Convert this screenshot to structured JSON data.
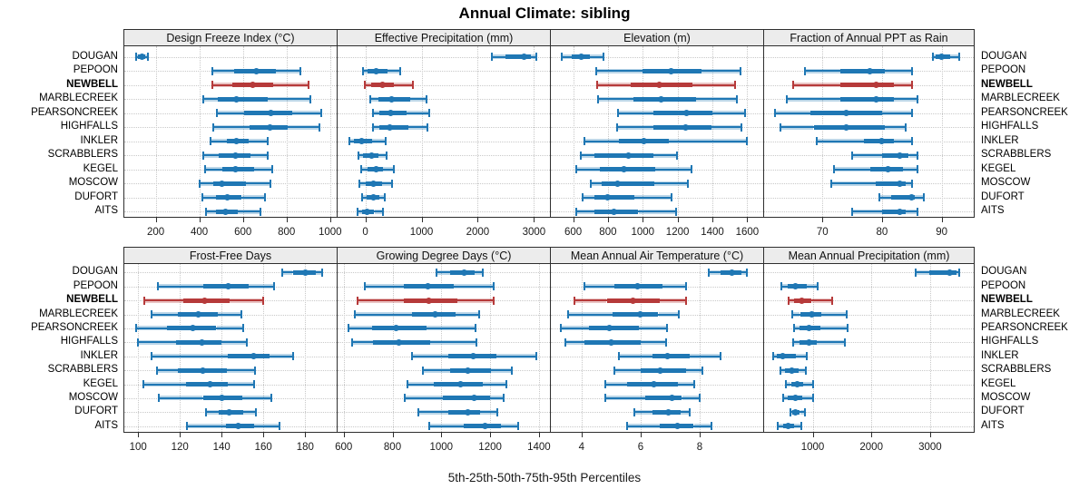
{
  "title": "Annual Climate: sibling",
  "caption": "5th-25th-50th-75th-95th Percentiles",
  "percentile_keys": [
    "5th",
    "25th",
    "50th",
    "75th",
    "95th"
  ],
  "stations": [
    "DOUGAN",
    "PEPOON",
    "NEWBELL",
    "MARBLECREEK",
    "PEARSONCREEK",
    "HIGHFALLS",
    "INKLER",
    "SCRABBLERS",
    "KEGEL",
    "MOSCOW",
    "DUFORT",
    "AITS"
  ],
  "highlight_station": "NEWBELL",
  "colors": {
    "series": "#1f77b4",
    "highlight": "#b63a3a",
    "grid": "#c9c9c9",
    "strip_bg": "#ececec",
    "border": "#2e2e2e"
  },
  "chart_data": [
    {
      "type": "dot-interval",
      "title": "Design Freeze Index (°C)",
      "grid_row": 1,
      "grid_col": 1,
      "axis": {
        "domain": [
          56,
          1030
        ],
        "ticks": [
          200,
          400,
          600,
          800,
          1000
        ]
      },
      "series": [
        {
          "name": "DOUGAN",
          "values": [
            110,
            120,
            135,
            150,
            165
          ]
        },
        {
          "name": "PEPOON",
          "values": [
            460,
            560,
            660,
            750,
            865
          ]
        },
        {
          "name": "NEWBELL",
          "values": [
            460,
            550,
            645,
            740,
            900
          ]
        },
        {
          "name": "MARBLECREEK",
          "values": [
            420,
            485,
            570,
            715,
            910
          ]
        },
        {
          "name": "PEARSONCREEK",
          "values": [
            480,
            605,
            730,
            825,
            960
          ]
        },
        {
          "name": "HIGHFALLS",
          "values": [
            465,
            630,
            725,
            805,
            950
          ]
        },
        {
          "name": "INKLER",
          "values": [
            450,
            525,
            570,
            625,
            715
          ]
        },
        {
          "name": "SCRABBLERS",
          "values": [
            420,
            490,
            565,
            635,
            715
          ]
        },
        {
          "name": "KEGEL",
          "values": [
            425,
            505,
            565,
            650,
            735
          ]
        },
        {
          "name": "MOSCOW",
          "values": [
            400,
            465,
            505,
            615,
            725
          ]
        },
        {
          "name": "DUFORT",
          "values": [
            415,
            475,
            530,
            595,
            700
          ]
        },
        {
          "name": "AITS",
          "values": [
            430,
            475,
            520,
            575,
            680
          ]
        }
      ]
    },
    {
      "type": "dot-interval",
      "title": "Effective Precipitation (mm)",
      "grid_row": 1,
      "grid_col": 2,
      "axis": {
        "domain": [
          -494,
          3285
        ],
        "ticks": [
          0,
          1000,
          2000,
          3000
        ]
      },
      "series": [
        {
          "name": "DOUGAN",
          "values": [
            2250,
            2500,
            2820,
            2950,
            3040
          ]
        },
        {
          "name": "PEPOON",
          "values": [
            -50,
            45,
            195,
            390,
            620
          ]
        },
        {
          "name": "NEWBELL",
          "values": [
            -10,
            105,
            300,
            500,
            845
          ]
        },
        {
          "name": "MARBLECREEK",
          "values": [
            85,
            230,
            470,
            805,
            1090
          ]
        },
        {
          "name": "PEARSONCREEK",
          "values": [
            140,
            255,
            445,
            740,
            1140
          ]
        },
        {
          "name": "HIGHFALLS",
          "values": [
            140,
            255,
            430,
            765,
            1105
          ]
        },
        {
          "name": "INKLER",
          "values": [
            -290,
            -200,
            -65,
            125,
            355
          ]
        },
        {
          "name": "SCRABBLERS",
          "values": [
            -130,
            -40,
            105,
            230,
            375
          ]
        },
        {
          "name": "KEGEL",
          "values": [
            -75,
            45,
            195,
            320,
            500
          ]
        },
        {
          "name": "MOSCOW",
          "values": [
            -105,
            0,
            150,
            300,
            480
          ]
        },
        {
          "name": "DUFORT",
          "values": [
            -55,
            30,
            140,
            245,
            340
          ]
        },
        {
          "name": "AITS",
          "values": [
            -145,
            -55,
            30,
            160,
            320
          ]
        }
      ]
    },
    {
      "type": "dot-interval",
      "title": "Elevation (m)",
      "grid_row": 1,
      "grid_col": 3,
      "axis": {
        "domain": [
          472,
          1692
        ],
        "ticks": [
          600,
          800,
          1000,
          1200,
          1400,
          1600
        ]
      },
      "series": [
        {
          "name": "DOUGAN",
          "values": [
            535,
            590,
            645,
            695,
            775
          ]
        },
        {
          "name": "PEPOON",
          "values": [
            735,
            1000,
            1165,
            1335,
            1560
          ]
        },
        {
          "name": "NEWBELL",
          "values": [
            740,
            930,
            1095,
            1285,
            1530
          ]
        },
        {
          "name": "MARBLECREEK",
          "values": [
            745,
            945,
            1105,
            1305,
            1540
          ]
        },
        {
          "name": "PEARSONCREEK",
          "values": [
            855,
            1060,
            1250,
            1400,
            1585
          ]
        },
        {
          "name": "HIGHFALLS",
          "values": [
            850,
            1060,
            1245,
            1395,
            1565
          ]
        },
        {
          "name": "INKLER",
          "values": [
            665,
            865,
            1005,
            1150,
            1600
          ]
        },
        {
          "name": "SCRABBLERS",
          "values": [
            645,
            720,
            915,
            1060,
            1195
          ]
        },
        {
          "name": "KEGEL",
          "values": [
            620,
            755,
            890,
            1070,
            1280
          ]
        },
        {
          "name": "MOSCOW",
          "values": [
            700,
            765,
            855,
            1065,
            1260
          ]
        },
        {
          "name": "DUFORT",
          "values": [
            655,
            720,
            795,
            950,
            1165
          ]
        },
        {
          "name": "AITS",
          "values": [
            620,
            720,
            835,
            975,
            1190
          ]
        }
      ]
    },
    {
      "type": "dot-interval",
      "title": "Fraction of Annual PPT as Rain",
      "grid_row": 1,
      "grid_col": 4,
      "axis": {
        "domain": [
          60.2,
          95.4
        ],
        "ticks": [
          70,
          80,
          90
        ]
      },
      "series": [
        {
          "name": "DOUGAN",
          "values": [
            88.5,
            89,
            90,
            91.5,
            93
          ]
        },
        {
          "name": "PEPOON",
          "values": [
            67,
            73,
            78,
            80.5,
            85
          ]
        },
        {
          "name": "NEWBELL",
          "values": [
            65,
            73,
            79,
            82,
            85
          ]
        },
        {
          "name": "MARBLECREEK",
          "values": [
            64,
            73,
            79,
            82,
            86
          ]
        },
        {
          "name": "PEARSONCREEK",
          "values": [
            62,
            68,
            74,
            80,
            85
          ]
        },
        {
          "name": "HIGHFALLS",
          "values": [
            63,
            68.5,
            74,
            80.5,
            84
          ]
        },
        {
          "name": "INKLER",
          "values": [
            69,
            77,
            80,
            82,
            85
          ]
        },
        {
          "name": "SCRABBLERS",
          "values": [
            75,
            80,
            83,
            84.5,
            86
          ]
        },
        {
          "name": "KEGEL",
          "values": [
            72,
            78,
            81,
            83.5,
            86
          ]
        },
        {
          "name": "MOSCOW",
          "values": [
            71.5,
            79,
            83,
            84,
            85
          ]
        },
        {
          "name": "DUFORT",
          "values": [
            79.5,
            81.5,
            85,
            85.5,
            87
          ]
        },
        {
          "name": "AITS",
          "values": [
            75,
            80,
            83,
            84,
            86
          ]
        }
      ]
    },
    {
      "type": "dot-interval",
      "title": "Frost-Free Days",
      "grid_row": 2,
      "grid_col": 1,
      "axis": {
        "domain": [
          93.4,
          195.1
        ],
        "ticks": [
          100,
          120,
          140,
          160,
          180
        ]
      },
      "series": [
        {
          "name": "DOUGAN",
          "values": [
            169,
            174,
            180,
            185,
            188
          ]
        },
        {
          "name": "PEPOON",
          "values": [
            109.5,
            131,
            143,
            153,
            165
          ]
        },
        {
          "name": "NEWBELL",
          "values": [
            103,
            121.5,
            132,
            144,
            160
          ]
        },
        {
          "name": "MARBLECREEK",
          "values": [
            106.5,
            119,
            129,
            138,
            149.5
          ]
        },
        {
          "name": "PEARSONCREEK",
          "values": [
            99,
            114,
            126,
            137.5,
            150.5
          ]
        },
        {
          "name": "HIGHFALLS",
          "values": [
            100,
            118,
            130.5,
            140,
            152
          ]
        },
        {
          "name": "INKLER",
          "values": [
            106.5,
            143,
            155.5,
            163,
            174
          ]
        },
        {
          "name": "SCRABBLERS",
          "values": [
            109,
            119,
            131,
            142.5,
            156
          ]
        },
        {
          "name": "KEGEL",
          "values": [
            102.5,
            123,
            134.5,
            143,
            155.5
          ]
        },
        {
          "name": "MOSCOW",
          "values": [
            110,
            131,
            140,
            150,
            164
          ]
        },
        {
          "name": "DUFORT",
          "values": [
            132.5,
            138.5,
            143.5,
            150.5,
            156.5
          ]
        },
        {
          "name": "AITS",
          "values": [
            123.5,
            142,
            148,
            155.5,
            167.5
          ]
        }
      ]
    },
    {
      "type": "dot-interval",
      "title": "Growing Degree Days (°C)",
      "grid_row": 2,
      "grid_col": 2,
      "axis": {
        "domain": [
          575,
          1445
        ],
        "ticks": [
          600,
          800,
          1000,
          1200,
          1400
        ]
      },
      "series": [
        {
          "name": "DOUGAN",
          "values": [
            980,
            1035,
            1095,
            1135,
            1170
          ]
        },
        {
          "name": "PEPOON",
          "values": [
            685,
            845,
            945,
            1050,
            1215
          ]
        },
        {
          "name": "NEWBELL",
          "values": [
            655,
            845,
            950,
            1065,
            1215
          ]
        },
        {
          "name": "MARBLECREEK",
          "values": [
            645,
            880,
            975,
            1060,
            1155
          ]
        },
        {
          "name": "PEARSONCREEK",
          "values": [
            620,
            715,
            815,
            940,
            1140
          ]
        },
        {
          "name": "HIGHFALLS",
          "values": [
            635,
            720,
            825,
            955,
            1145
          ]
        },
        {
          "name": "INKLER",
          "values": [
            880,
            1030,
            1130,
            1225,
            1390
          ]
        },
        {
          "name": "SCRABBLERS",
          "values": [
            925,
            1035,
            1110,
            1205,
            1290
          ]
        },
        {
          "name": "KEGEL",
          "values": [
            860,
            970,
            1080,
            1170,
            1265
          ]
        },
        {
          "name": "MOSCOW",
          "values": [
            850,
            1005,
            1135,
            1200,
            1255
          ]
        },
        {
          "name": "DUFORT",
          "values": [
            905,
            1030,
            1110,
            1160,
            1230
          ]
        },
        {
          "name": "AITS",
          "values": [
            950,
            1090,
            1180,
            1245,
            1315
          ]
        }
      ]
    },
    {
      "type": "dot-interval",
      "title": "Mean Annual Air Temperature (°C)",
      "grid_row": 2,
      "grid_col": 3,
      "axis": {
        "domain": [
          2.96,
          10.15
        ],
        "ticks": [
          4,
          6,
          8
        ]
      },
      "series": [
        {
          "name": "DOUGAN",
          "values": [
            8.3,
            8.7,
            9.1,
            9.4,
            9.6
          ]
        },
        {
          "name": "PEPOON",
          "values": [
            4.1,
            5.1,
            5.9,
            6.75,
            7.55
          ]
        },
        {
          "name": "NEWBELL",
          "values": [
            3.75,
            4.85,
            5.75,
            6.65,
            7.55
          ]
        },
        {
          "name": "MARBLECREEK",
          "values": [
            3.55,
            5.05,
            6.0,
            6.6,
            7.3
          ]
        },
        {
          "name": "PEARSONCREEK",
          "values": [
            3.3,
            4.25,
            4.95,
            5.95,
            6.9
          ]
        },
        {
          "name": "HIGHFALLS",
          "values": [
            3.45,
            4.1,
            5.0,
            6.0,
            6.85
          ]
        },
        {
          "name": "INKLER",
          "values": [
            5.25,
            6.4,
            6.9,
            7.65,
            8.7
          ]
        },
        {
          "name": "SCRABBLERS",
          "values": [
            5.1,
            6.0,
            6.65,
            7.55,
            8.1
          ]
        },
        {
          "name": "KEGEL",
          "values": [
            4.8,
            5.55,
            6.45,
            7.25,
            7.8
          ]
        },
        {
          "name": "MOSCOW",
          "values": [
            4.8,
            6.15,
            7.05,
            7.4,
            8.0
          ]
        },
        {
          "name": "DUFORT",
          "values": [
            5.8,
            6.4,
            6.95,
            7.35,
            7.65
          ]
        },
        {
          "name": "AITS",
          "values": [
            5.55,
            6.65,
            7.25,
            7.8,
            8.4
          ]
        }
      ]
    },
    {
      "type": "dot-interval",
      "title": "Mean Annual Precipitation (mm)",
      "grid_row": 2,
      "grid_col": 4,
      "axis": {
        "domain": [
          174,
          3743
        ],
        "ticks": [
          1000,
          2000,
          3000
        ]
      },
      "series": [
        {
          "name": "DOUGAN",
          "values": [
            2755,
            2990,
            3330,
            3450,
            3500
          ]
        },
        {
          "name": "PEPOON",
          "values": [
            460,
            580,
            700,
            900,
            1085
          ]
        },
        {
          "name": "NEWBELL",
          "values": [
            590,
            680,
            820,
            985,
            1325
          ]
        },
        {
          "name": "MARBLECREEK",
          "values": [
            655,
            785,
            990,
            1150,
            1580
          ]
        },
        {
          "name": "PEARSONCREEK",
          "values": [
            680,
            770,
            940,
            1130,
            1590
          ]
        },
        {
          "name": "HIGHFALLS",
          "values": [
            665,
            770,
            940,
            1065,
            1555
          ]
        },
        {
          "name": "INKLER",
          "values": [
            335,
            395,
            485,
            715,
            895
          ]
        },
        {
          "name": "SCRABBLERS",
          "values": [
            445,
            530,
            640,
            755,
            885
          ]
        },
        {
          "name": "KEGEL",
          "values": [
            550,
            630,
            735,
            835,
            1010
          ]
        },
        {
          "name": "MOSCOW",
          "values": [
            490,
            580,
            705,
            820,
            1000
          ]
        },
        {
          "name": "DUFORT",
          "values": [
            615,
            650,
            705,
            785,
            870
          ]
        },
        {
          "name": "AITS",
          "values": [
            410,
            495,
            590,
            680,
            805
          ]
        }
      ]
    }
  ]
}
